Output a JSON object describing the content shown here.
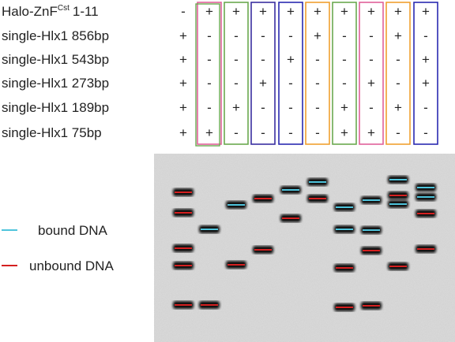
{
  "header": {
    "construct": "Halo-ZnF",
    "construct_sup": "Cst",
    "construct_suffix": "1-11"
  },
  "rows": [
    {
      "label": null,
      "signs": [
        "-",
        "+",
        "+",
        "+",
        "+",
        "+",
        "+",
        "+",
        "+",
        "+"
      ]
    },
    {
      "label": "single-Hlx1 856bp",
      "signs": [
        "+",
        "-",
        "-",
        "-",
        "-",
        "+",
        "-",
        "-",
        "+",
        "-"
      ]
    },
    {
      "label": "single-Hlx1 543bp",
      "signs": [
        "+",
        "-",
        "-",
        "-",
        "+",
        "-",
        "-",
        "-",
        "-",
        "+"
      ]
    },
    {
      "label": "single-Hlx1 273bp",
      "signs": [
        "+",
        "-",
        "-",
        "+",
        "-",
        "-",
        "-",
        "+",
        "-",
        "+"
      ]
    },
    {
      "label": "single-Hlx1 189bp",
      "signs": [
        "+",
        "-",
        "+",
        "-",
        "-",
        "-",
        "+",
        "-",
        "+",
        "-"
      ]
    },
    {
      "label": "single-Hlx1 75bp",
      "signs": [
        "+",
        "+",
        "-",
        "-",
        "-",
        "-",
        "+",
        "+",
        "-",
        "-"
      ]
    }
  ],
  "legend": {
    "bound": "bound DNA",
    "unbound": "unbound DNA"
  }
}
